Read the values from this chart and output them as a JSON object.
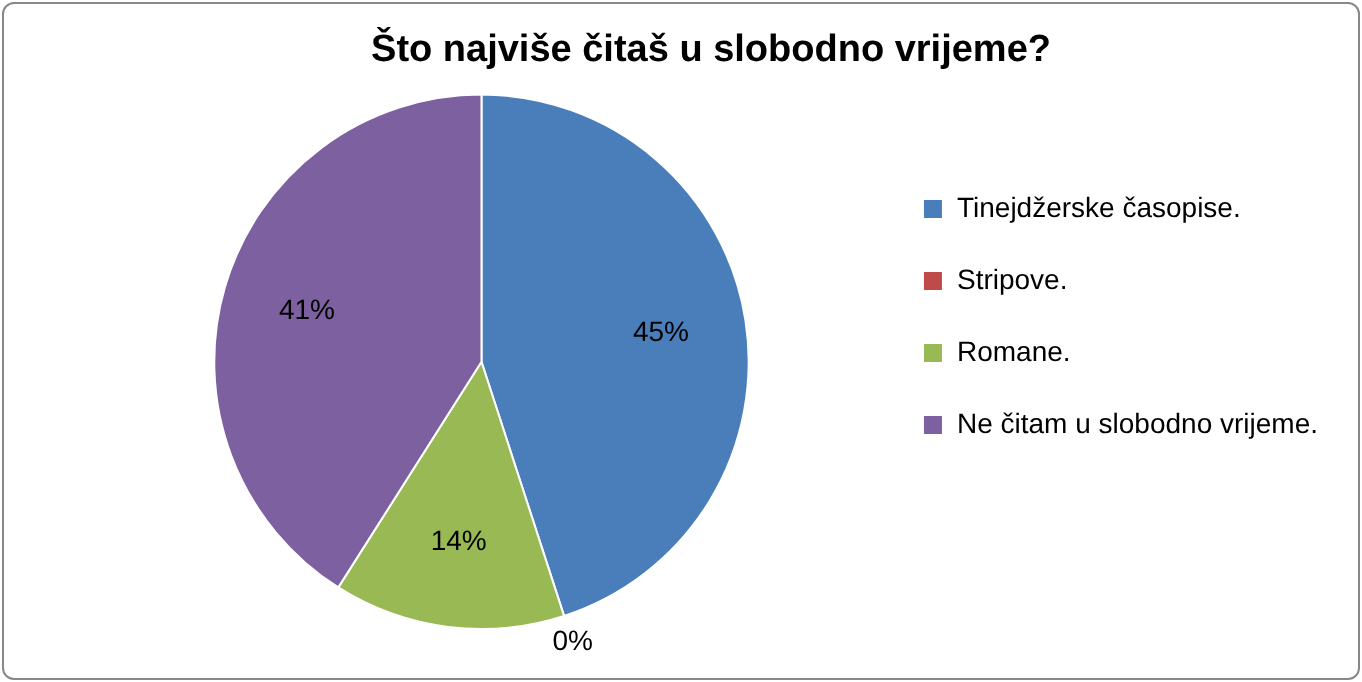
{
  "chart_data": {
    "type": "pie",
    "title": "Što najviše čitaš u slobodno vrijeme?",
    "categories": [
      "Tinejdžerske časopise.",
      "Stripove.",
      "Romane.",
      "Ne čitam u slobodno vrijeme."
    ],
    "values": [
      45,
      0,
      14,
      41
    ],
    "colors": [
      "#4a7ebb",
      "#be4b48",
      "#98b954",
      "#7d60a0"
    ],
    "value_labels": [
      "45%",
      "0%",
      "14%",
      "41%"
    ],
    "legend": "right"
  }
}
